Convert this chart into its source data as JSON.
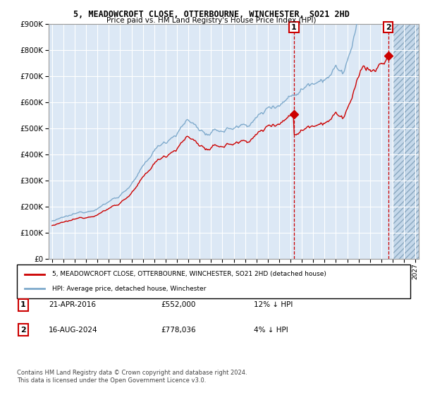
{
  "title1": "5, MEADOWCROFT CLOSE, OTTERBOURNE, WINCHESTER, SO21 2HD",
  "title2": "Price paid vs. HM Land Registry's House Price Index (HPI)",
  "legend_line1": "5, MEADOWCROFT CLOSE, OTTERBOURNE, WINCHESTER, SO21 2HD (detached house)",
  "legend_line2": "HPI: Average price, detached house, Winchester",
  "annotation1_label": "1",
  "annotation1_date": "21-APR-2016",
  "annotation1_price": "£552,000",
  "annotation1_hpi": "12% ↓ HPI",
  "annotation1_year": 2016.3,
  "annotation1_value": 552000,
  "annotation2_label": "2",
  "annotation2_date": "16-AUG-2024",
  "annotation2_price": "£778,036",
  "annotation2_hpi": "4% ↓ HPI",
  "annotation2_year": 2024.62,
  "annotation2_value": 778036,
  "hpi_color": "#7faacc",
  "sale_color": "#cc0000",
  "vline_color": "#cc0000",
  "box_color": "#cc0000",
  "plot_bg_color": "#dce8f5",
  "hatch_color": "#c5d8ea",
  "grid_color": "#ffffff",
  "ylim_min": 0,
  "ylim_max": 900000,
  "xlim_min": 1994.7,
  "xlim_max": 2027.3,
  "hatch_start": 2025.0,
  "footer1": "Contains HM Land Registry data © Crown copyright and database right 2024.",
  "footer2": "This data is licensed under the Open Government Licence v3.0."
}
